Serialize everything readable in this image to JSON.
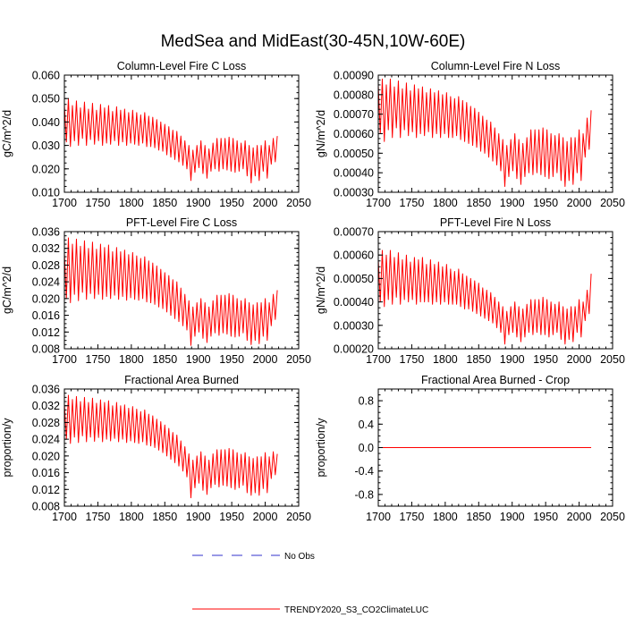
{
  "figure": {
    "title": "MedSea and MidEast(30-45N,10W-60E)"
  },
  "colors": {
    "series": "#ff0000",
    "obs": "#3333cc",
    "axis": "#000000"
  },
  "legend": {
    "items": [
      {
        "label": "No Obs",
        "style": "dashed",
        "color": "#3333cc"
      },
      {
        "label": "TRENDY2020_S3_CO2ClimateLUC",
        "style": "solid",
        "color": "#ff0000"
      }
    ]
  },
  "chart_data": [
    {
      "type": "line",
      "title": "Column-Level Fire C Loss",
      "ylabel": "gC/m^2/d",
      "xlim": [
        1700,
        2050
      ],
      "ylim": [
        0.01,
        0.06
      ],
      "xticks": [
        1700,
        1750,
        1800,
        1850,
        1900,
        1950,
        2000,
        2050
      ],
      "xtick_labels": [
        "1700",
        "1750",
        "1800",
        "1850",
        "1900",
        "1950",
        "2000",
        "2050"
      ],
      "yticks": [
        0.01,
        0.02,
        0.03,
        0.04,
        0.05,
        0.06
      ],
      "ytick_labels": [
        "0.010",
        "0.020",
        "0.030",
        "0.040",
        "0.050",
        "0.060"
      ],
      "series": [
        {
          "name": "TRENDY2020_S3_CO2ClimateLUC",
          "x_start": 1700,
          "x_end": 2018,
          "x_step": 3,
          "y": [
            0.0475,
            0.0315,
            0.05,
            0.0295,
            0.047,
            0.032,
            0.049,
            0.03,
            0.046,
            0.033,
            0.0485,
            0.03,
            0.0455,
            0.0325,
            0.048,
            0.0305,
            0.045,
            0.032,
            0.0475,
            0.03,
            0.046,
            0.031,
            0.047,
            0.0305,
            0.0445,
            0.032,
            0.0465,
            0.03,
            0.045,
            0.0315,
            0.0455,
            0.03,
            0.044,
            0.031,
            0.045,
            0.0305,
            0.044,
            0.03,
            0.043,
            0.031,
            0.044,
            0.0295,
            0.0425,
            0.0295,
            0.042,
            0.029,
            0.041,
            0.028,
            0.04,
            0.0275,
            0.039,
            0.026,
            0.038,
            0.025,
            0.0365,
            0.024,
            0.036,
            0.023,
            0.034,
            0.0215,
            0.032,
            0.02,
            0.03,
            0.015,
            0.028,
            0.0185,
            0.03,
            0.0205,
            0.032,
            0.018,
            0.03,
            0.016,
            0.0285,
            0.019,
            0.031,
            0.02,
            0.033,
            0.019,
            0.033,
            0.02,
            0.033,
            0.0195,
            0.0335,
            0.019,
            0.033,
            0.0185,
            0.032,
            0.019,
            0.031,
            0.02,
            0.032,
            0.017,
            0.03,
            0.014,
            0.029,
            0.017,
            0.03,
            0.015,
            0.03,
            0.019,
            0.032,
            0.016,
            0.03,
            0.022,
            0.033,
            0.023,
            0.034
          ]
        }
      ]
    },
    {
      "type": "line",
      "title": "Column-Level Fire N Loss",
      "ylabel": "gN/m^2/d",
      "xlim": [
        1700,
        2050
      ],
      "ylim": [
        0.0003,
        0.0009
      ],
      "xticks": [
        1700,
        1750,
        1800,
        1850,
        1900,
        1950,
        2000,
        2050
      ],
      "xtick_labels": [
        "1700",
        "1750",
        "1800",
        "1850",
        "1900",
        "1950",
        "2000",
        "2050"
      ],
      "yticks": [
        0.0003,
        0.0004,
        0.0005,
        0.0006,
        0.0007,
        0.0008,
        0.0009
      ],
      "ytick_labels": [
        "0.00030",
        "0.00040",
        "0.00050",
        "0.00060",
        "0.00070",
        "0.00080",
        "0.00090"
      ],
      "series": [
        {
          "name": "TRENDY2020_S3_CO2ClimateLUC",
          "x_start": 1700,
          "x_end": 2018,
          "x_step": 3,
          "y": [
            0.00085,
            0.0006,
            0.00088,
            0.00056,
            0.00085,
            0.00062,
            0.00088,
            0.00058,
            0.00084,
            0.00063,
            0.00087,
            0.00058,
            0.00083,
            0.00062,
            0.00086,
            0.00059,
            0.00082,
            0.00061,
            0.00085,
            0.00058,
            0.00083,
            0.0006,
            0.00084,
            0.00059,
            0.00081,
            0.00061,
            0.00083,
            0.00058,
            0.00081,
            0.0006,
            0.00082,
            0.00058,
            0.0008,
            0.0006,
            0.00081,
            0.00058,
            0.00079,
            0.00058,
            0.00078,
            0.00059,
            0.00079,
            0.00057,
            0.00077,
            0.00056,
            0.00076,
            0.00055,
            0.00074,
            0.00054,
            0.00073,
            0.00053,
            0.00071,
            0.00051,
            0.00069,
            0.0005,
            0.00067,
            0.00048,
            0.00066,
            0.00046,
            0.00063,
            0.00044,
            0.0006,
            0.00041,
            0.00057,
            0.00033,
            0.00054,
            0.00038,
            0.00057,
            0.00041,
            0.0006,
            0.00037,
            0.00057,
            0.00034,
            0.00055,
            0.00038,
            0.00058,
            0.0004,
            0.00062,
            0.00039,
            0.00062,
            0.0004,
            0.00062,
            0.00039,
            0.00063,
            0.00038,
            0.00062,
            0.00037,
            0.0006,
            0.00038,
            0.00059,
            0.0004,
            0.0006,
            0.00036,
            0.00058,
            0.00033,
            0.00056,
            0.00036,
            0.00058,
            0.00034,
            0.00058,
            0.0004,
            0.00062,
            0.00036,
            0.0006,
            0.00048,
            0.00068,
            0.00052,
            0.00072
          ]
        }
      ]
    },
    {
      "type": "line",
      "title": "PFT-Level Fire C Loss",
      "ylabel": "gC/m^2/d",
      "xlim": [
        1700,
        2050
      ],
      "ylim": [
        0.008,
        0.036
      ],
      "xticks": [
        1700,
        1750,
        1800,
        1850,
        1900,
        1950,
        2000,
        2050
      ],
      "xtick_labels": [
        "1700",
        "1750",
        "1800",
        "1850",
        "1900",
        "1950",
        "2000",
        "2050"
      ],
      "yticks": [
        0.008,
        0.012,
        0.016,
        0.02,
        0.024,
        0.028,
        0.032,
        0.036
      ],
      "ytick_labels": [
        "0.008",
        "0.012",
        "0.016",
        "0.020",
        "0.024",
        "0.028",
        "0.032",
        "0.036"
      ],
      "series": [
        {
          "name": "TRENDY2020_S3_CO2ClimateLUC",
          "x_start": 1700,
          "x_end": 2018,
          "x_step": 3,
          "y": [
            0.031,
            0.02,
            0.0345,
            0.019,
            0.033,
            0.021,
            0.0342,
            0.0195,
            0.0325,
            0.0215,
            0.0338,
            0.0198,
            0.032,
            0.0212,
            0.0335,
            0.02,
            0.0318,
            0.021,
            0.033,
            0.0198,
            0.0322,
            0.0205,
            0.0328,
            0.02,
            0.0312,
            0.0208,
            0.0322,
            0.0198,
            0.0312,
            0.0205,
            0.0316,
            0.0196,
            0.0305,
            0.0202,
            0.031,
            0.0198,
            0.0302,
            0.0196,
            0.0296,
            0.02,
            0.03,
            0.0192,
            0.029,
            0.019,
            0.0285,
            0.0186,
            0.0278,
            0.018,
            0.027,
            0.0176,
            0.0262,
            0.0168,
            0.0255,
            0.016,
            0.0245,
            0.0152,
            0.024,
            0.0145,
            0.0225,
            0.0135,
            0.021,
            0.0125,
            0.0195,
            0.0088,
            0.018,
            0.011,
            0.019,
            0.012,
            0.02,
            0.0105,
            0.019,
            0.0095,
            0.018,
            0.011,
            0.0195,
            0.0118,
            0.0208,
            0.0112,
            0.0208,
            0.0118,
            0.0208,
            0.0115,
            0.0212,
            0.011,
            0.0208,
            0.0108,
            0.02,
            0.011,
            0.0195,
            0.0118,
            0.02,
            0.01,
            0.019,
            0.009,
            0.0185,
            0.01,
            0.019,
            0.0092,
            0.019,
            0.011,
            0.02,
            0.01,
            0.019,
            0.0135,
            0.021,
            0.015,
            0.022
          ]
        }
      ]
    },
    {
      "type": "line",
      "title": "PFT-Level Fire N Loss",
      "ylabel": "gN/m^2/d",
      "xlim": [
        1700,
        2050
      ],
      "ylim": [
        0.0002,
        0.0007
      ],
      "xticks": [
        1700,
        1750,
        1800,
        1850,
        1900,
        1950,
        2000,
        2050
      ],
      "xtick_labels": [
        "1700",
        "1750",
        "1800",
        "1850",
        "1900",
        "1950",
        "2000",
        "2050"
      ],
      "yticks": [
        0.0002,
        0.0003,
        0.0004,
        0.0005,
        0.0006,
        0.0007
      ],
      "ytick_labels": [
        "0.00020",
        "0.00030",
        "0.00040",
        "0.00050",
        "0.00060",
        "0.00070"
      ],
      "series": [
        {
          "name": "TRENDY2020_S3_CO2ClimateLUC",
          "x_start": 1700,
          "x_end": 2018,
          "x_step": 3,
          "y": [
            0.00058,
            0.0004,
            0.00062,
            0.00038,
            0.0006,
            0.00041,
            0.00062,
            0.00039,
            0.00059,
            0.00042,
            0.00061,
            0.00039,
            0.00058,
            0.00041,
            0.0006,
            0.0004,
            0.00057,
            0.00041,
            0.00059,
            0.00039,
            0.00058,
            0.0004,
            0.00059,
            0.0004,
            0.00056,
            0.0004,
            0.00058,
            0.00039,
            0.00056,
            0.0004,
            0.00057,
            0.00039,
            0.00055,
            0.0004,
            0.00056,
            0.00039,
            0.00054,
            0.00039,
            0.00053,
            0.00039,
            0.00054,
            0.00038,
            0.00052,
            0.00037,
            0.00051,
            0.00037,
            0.0005,
            0.00036,
            0.00049,
            0.00035,
            0.00048,
            0.00034,
            0.00046,
            0.00033,
            0.00045,
            0.00032,
            0.00044,
            0.00031,
            0.00042,
            0.00029,
            0.0004,
            0.00027,
            0.00038,
            0.00022,
            0.00036,
            0.00026,
            0.00038,
            0.00027,
            0.0004,
            0.00025,
            0.00038,
            0.00023,
            0.00037,
            0.00025,
            0.00039,
            0.00027,
            0.00041,
            0.00026,
            0.00041,
            0.00027,
            0.00041,
            0.00026,
            0.00042,
            0.00026,
            0.00041,
            0.00025,
            0.0004,
            0.00026,
            0.00039,
            0.00027,
            0.0004,
            0.00024,
            0.00038,
            0.00022,
            0.00037,
            0.00024,
            0.00038,
            0.00023,
            0.00038,
            0.00027,
            0.00041,
            0.00025,
            0.0004,
            0.00032,
            0.00045,
            0.00035,
            0.00052
          ]
        }
      ]
    },
    {
      "type": "line",
      "title": "Fractional Area Burned",
      "ylabel": "proportion/y",
      "xlim": [
        1700,
        2050
      ],
      "ylim": [
        0.008,
        0.036
      ],
      "xticks": [
        1700,
        1750,
        1800,
        1850,
        1900,
        1950,
        2000,
        2050
      ],
      "xtick_labels": [
        "1700",
        "1750",
        "1800",
        "1850",
        "1900",
        "1950",
        "2000",
        "2050"
      ],
      "yticks": [
        0.008,
        0.012,
        0.016,
        0.02,
        0.024,
        0.028,
        0.032,
        0.036
      ],
      "ytick_labels": [
        "0.008",
        "0.012",
        "0.016",
        "0.020",
        "0.024",
        "0.028",
        "0.032",
        "0.036"
      ],
      "series": [
        {
          "name": "TRENDY2020_S3_CO2ClimateLUC",
          "x_start": 1700,
          "x_end": 2018,
          "x_step": 3,
          "y": [
            0.0325,
            0.024,
            0.0345,
            0.023,
            0.0335,
            0.0245,
            0.0342,
            0.0232,
            0.033,
            0.0248,
            0.034,
            0.0234,
            0.0328,
            0.0245,
            0.0338,
            0.0235,
            0.0326,
            0.0244,
            0.0334,
            0.0234,
            0.0328,
            0.024,
            0.0332,
            0.0236,
            0.032,
            0.0242,
            0.0328,
            0.0234,
            0.032,
            0.024,
            0.0322,
            0.0232,
            0.0314,
            0.0236,
            0.0318,
            0.0232,
            0.0312,
            0.023,
            0.0306,
            0.0234,
            0.031,
            0.0226,
            0.03,
            0.0224,
            0.0296,
            0.022,
            0.0288,
            0.0214,
            0.0282,
            0.0208,
            0.0274,
            0.02,
            0.0266,
            0.0192,
            0.0256,
            0.0184,
            0.025,
            0.0176,
            0.0236,
            0.0164,
            0.0222,
            0.015,
            0.0205,
            0.01,
            0.019,
            0.0124,
            0.02,
            0.0135,
            0.021,
            0.0118,
            0.02,
            0.0108,
            0.019,
            0.0124,
            0.0205,
            0.0132,
            0.0215,
            0.0126,
            0.0215,
            0.013,
            0.0215,
            0.0128,
            0.0218,
            0.0124,
            0.0215,
            0.012,
            0.0208,
            0.0124,
            0.0204,
            0.013,
            0.0208,
            0.0112,
            0.0198,
            0.0106,
            0.0194,
            0.0112,
            0.0198,
            0.0106,
            0.0198,
            0.0122,
            0.0208,
            0.0112,
            0.0198,
            0.0146,
            0.021,
            0.0155,
            0.0205
          ]
        }
      ]
    },
    {
      "type": "line",
      "title": "Fractional Area Burned - Crop",
      "ylabel": "proportion/y",
      "xlim": [
        1700,
        2050
      ],
      "ylim": [
        -1.0,
        1.0
      ],
      "xticks": [
        1700,
        1750,
        1800,
        1850,
        1900,
        1950,
        2000,
        2050
      ],
      "xtick_labels": [
        "1700",
        "1750",
        "1800",
        "1850",
        "1900",
        "1950",
        "2000",
        "2050"
      ],
      "yticks": [
        -0.8,
        -0.4,
        0.0,
        0.4,
        0.8
      ],
      "ytick_labels": [
        "-0.8",
        "-0.4",
        "0.0",
        "0.4",
        "0.8"
      ],
      "series": [
        {
          "name": "TRENDY2020_S3_CO2ClimateLUC",
          "x_start": 1700,
          "x_end": 2018,
          "x_step": 318,
          "y": [
            0.0,
            0.0
          ]
        }
      ]
    }
  ]
}
